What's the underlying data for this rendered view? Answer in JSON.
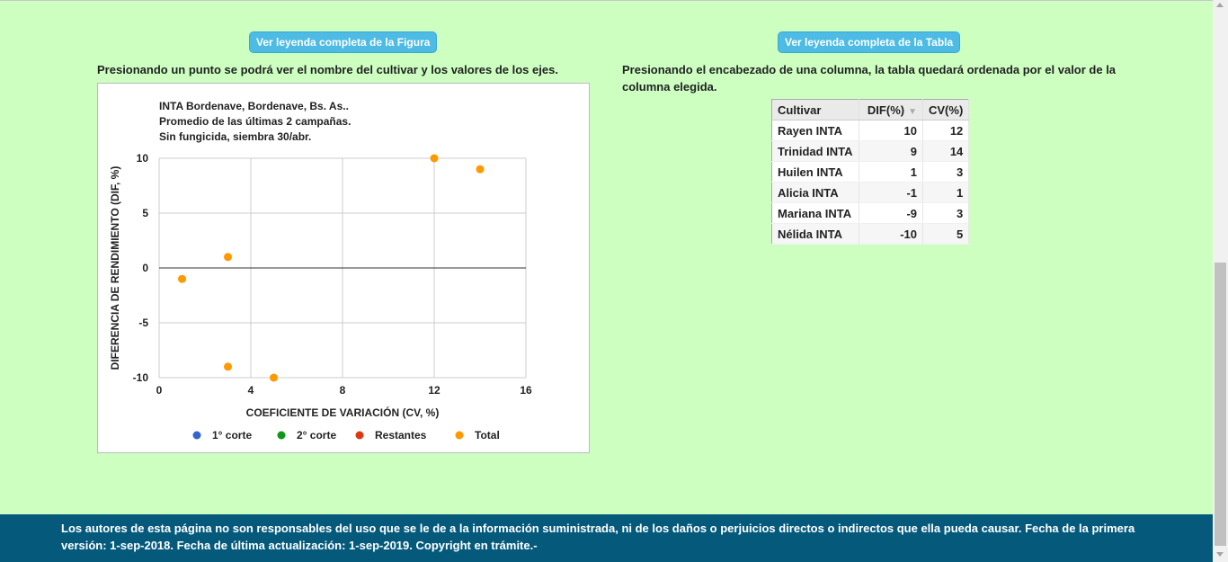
{
  "left": {
    "button": "Ver leyenda completa de la Figura",
    "instruction": "Presionando un punto se podrá ver el nombre del cultivar y los valores de los ejes."
  },
  "right": {
    "button": "Ver leyenda completa de la Tabla",
    "instruction": "Presionando el encabezado de una columna, la tabla quedará ordenada por el valor de la columna elegida.",
    "table": {
      "headers": [
        "Cultivar",
        "DIF(%)",
        "CV(%)"
      ],
      "sort_indicator": "▼",
      "rows": [
        [
          "Rayen INTA",
          "10",
          "12"
        ],
        [
          "Trinidad INTA",
          "9",
          "14"
        ],
        [
          "Huilen INTA",
          "1",
          "3"
        ],
        [
          "Alicia INTA",
          "-1",
          "1"
        ],
        [
          "Mariana INTA",
          "-9",
          "3"
        ],
        [
          "Nélida INTA",
          "-10",
          "5"
        ]
      ]
    }
  },
  "chart_data": {
    "type": "scatter",
    "title_lines": [
      "INTA Bordenave, Bordenave, Bs. As..",
      "Promedio de las últimas 2 campañas.",
      "Sin fungicida, siembra 30/abr."
    ],
    "xlabel": "COEFICIENTE DE VARIACIÓN (CV, %)",
    "ylabel": "DIFERENCIA DE RENDIMIENTO (DIF, %)",
    "xlim": [
      0,
      16
    ],
    "ylim": [
      -10,
      10
    ],
    "xticks": [
      0,
      4,
      8,
      12,
      16
    ],
    "yticks": [
      -10,
      -5,
      0,
      5,
      10
    ],
    "grid": true,
    "legend_position": "bottom",
    "legend": [
      {
        "name": "1° corte",
        "color": "#3366cc"
      },
      {
        "name": "2° corte",
        "color": "#109618"
      },
      {
        "name": "Restantes",
        "color": "#dc3912"
      },
      {
        "name": "Total",
        "color": "#ff9900"
      }
    ],
    "series": [
      {
        "name": "Total",
        "color": "#ff9900",
        "points": [
          [
            12,
            10
          ],
          [
            14,
            9
          ],
          [
            3,
            1
          ],
          [
            1,
            -1
          ],
          [
            3,
            -9
          ],
          [
            5,
            -10
          ]
        ]
      }
    ]
  },
  "footer": {
    "text": "Los autores de esta página no son responsables del uso que se le de a la información suministrada, ni de los daños o perjuicios directos o indirectos que ella pueda causar. Fecha de la primera versión: 1-sep-2018. Fecha de última actualización: 1-sep-2019. Copyright en trámite.-"
  }
}
